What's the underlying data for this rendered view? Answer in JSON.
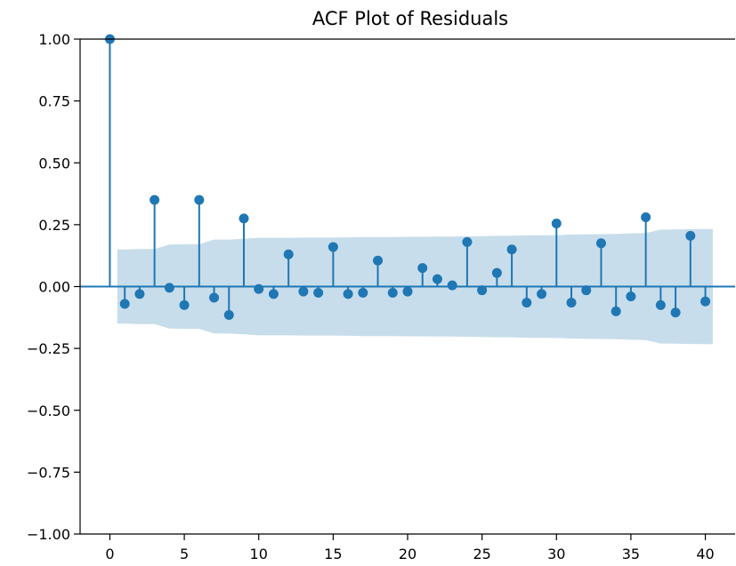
{
  "chart_data": {
    "type": "stem",
    "title": "ACF Plot of Residuals",
    "xlabel": "",
    "ylabel": "",
    "xlim": [
      -2,
      42
    ],
    "ylim": [
      -1.0,
      1.0
    ],
    "x_ticks": [
      0,
      5,
      10,
      15,
      20,
      25,
      30,
      35,
      40
    ],
    "x_tick_labels": [
      "0",
      "5",
      "10",
      "15",
      "20",
      "25",
      "30",
      "35",
      "40"
    ],
    "y_ticks": [
      1.0,
      0.75,
      0.5,
      0.25,
      0.0,
      -0.25,
      -0.5,
      -0.75,
      -1.0
    ],
    "y_tick_labels": [
      "1.00",
      "0.75",
      "0.50",
      "0.25",
      "0.00",
      "−0.25",
      "−0.50",
      "−0.75",
      "−1.00"
    ],
    "grid": false,
    "colors": {
      "stem": "#1f77b4",
      "band": "#1f77b4"
    },
    "lags": [
      0,
      1,
      2,
      3,
      4,
      5,
      6,
      7,
      8,
      9,
      10,
      11,
      12,
      13,
      14,
      15,
      16,
      17,
      18,
      19,
      20,
      21,
      22,
      23,
      24,
      25,
      26,
      27,
      28,
      29,
      30,
      31,
      32,
      33,
      34,
      35,
      36,
      37,
      38,
      39,
      40
    ],
    "acf": [
      1.0,
      -0.07,
      -0.03,
      0.35,
      -0.005,
      -0.075,
      0.35,
      -0.045,
      -0.115,
      0.275,
      -0.01,
      -0.03,
      0.13,
      -0.02,
      -0.025,
      0.16,
      -0.03,
      -0.025,
      0.105,
      -0.025,
      -0.02,
      0.075,
      0.03,
      0.005,
      0.18,
      -0.015,
      0.055,
      0.15,
      -0.065,
      -0.03,
      0.255,
      -0.065,
      -0.015,
      0.175,
      -0.1,
      -0.04,
      0.28,
      -0.075,
      -0.105,
      0.205,
      -0.06
    ],
    "confidence_band": {
      "x": [
        0.5,
        1,
        2,
        3,
        4,
        5,
        6,
        7,
        8,
        9,
        10,
        11,
        12,
        13,
        14,
        15,
        16,
        17,
        18,
        19,
        20,
        21,
        22,
        23,
        24,
        25,
        26,
        27,
        28,
        29,
        30,
        31,
        32,
        33,
        34,
        35,
        36,
        37,
        38,
        39,
        40.5
      ],
      "upper": [
        0.15,
        0.15,
        0.152,
        0.152,
        0.17,
        0.171,
        0.171,
        0.19,
        0.19,
        0.193,
        0.197,
        0.197,
        0.197,
        0.198,
        0.198,
        0.198,
        0.199,
        0.2,
        0.2,
        0.2,
        0.201,
        0.201,
        0.202,
        0.202,
        0.203,
        0.204,
        0.205,
        0.205,
        0.207,
        0.207,
        0.208,
        0.21,
        0.211,
        0.212,
        0.213,
        0.215,
        0.216,
        0.23,
        0.231,
        0.232,
        0.233
      ],
      "lower": [
        -0.15,
        -0.15,
        -0.152,
        -0.152,
        -0.17,
        -0.171,
        -0.171,
        -0.19,
        -0.19,
        -0.193,
        -0.197,
        -0.197,
        -0.197,
        -0.198,
        -0.198,
        -0.198,
        -0.199,
        -0.2,
        -0.2,
        -0.2,
        -0.201,
        -0.201,
        -0.202,
        -0.202,
        -0.203,
        -0.204,
        -0.205,
        -0.205,
        -0.207,
        -0.207,
        -0.208,
        -0.21,
        -0.211,
        -0.212,
        -0.213,
        -0.215,
        -0.216,
        -0.23,
        -0.231,
        -0.232,
        -0.233
      ]
    }
  }
}
